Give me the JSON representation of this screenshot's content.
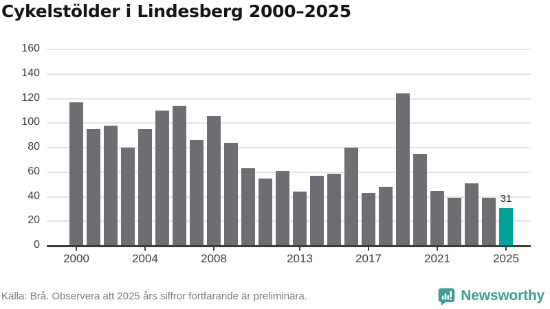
{
  "title": "Cykelstölder i Lindesberg 2000–2025",
  "footer": {
    "source": "Källa: Brå. Observera att 2025 års siffror fortfarande är preliminära.",
    "brand": "Newsworthy"
  },
  "colors": {
    "bar": "#6e6d72",
    "highlight": "#00a29a",
    "brand": "#3a9e96",
    "grid": "#e4e4e4",
    "axis": "#3c3c3c",
    "tick_text": "#3a3a3a",
    "title_text": "#141414",
    "muted_text": "#7c7c7c"
  },
  "chart_data": {
    "type": "bar",
    "title": "Cykelstölder i Lindesberg 2000–2025",
    "xlabel": "",
    "ylabel": "",
    "categories": [
      2000,
      2001,
      2002,
      2003,
      2004,
      2005,
      2006,
      2007,
      2008,
      2009,
      2010,
      2011,
      2012,
      2013,
      2014,
      2015,
      2016,
      2017,
      2018,
      2019,
      2020,
      2021,
      2022,
      2023,
      2024,
      2025
    ],
    "values": [
      117,
      95,
      98,
      80,
      95,
      110,
      114,
      86,
      106,
      84,
      63,
      55,
      61,
      44,
      57,
      59,
      80,
      43,
      48,
      124,
      75,
      45,
      39,
      51,
      39,
      31
    ],
    "highlight_index": 25,
    "highlight_label": "31",
    "xticks": [
      2000,
      2004,
      2008,
      2013,
      2017,
      2021,
      2025
    ],
    "yticks": [
      0,
      20,
      40,
      60,
      80,
      100,
      120,
      140,
      160
    ],
    "ylim": [
      0,
      160
    ],
    "grid": "horizontal",
    "legend": "none"
  }
}
